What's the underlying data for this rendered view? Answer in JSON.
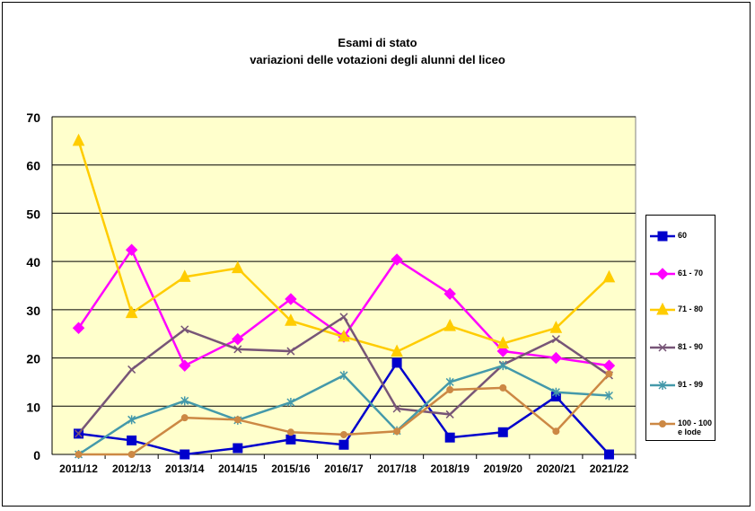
{
  "title": {
    "line1": "Esami di stato",
    "line2": "variazioni delle votazioni degli alunni del liceo"
  },
  "chart_data": {
    "type": "line",
    "title": "Esami di stato variazioni delle votazioni degli alunni del liceo",
    "xlabel": "",
    "ylabel": "",
    "ylim": [
      0,
      70
    ],
    "yticks": [
      0,
      10,
      20,
      30,
      40,
      50,
      60,
      70
    ],
    "grid": true,
    "legend_position": "right",
    "plot_background": "#FFFFCC",
    "categories": [
      "2011/12",
      "2012/13",
      "2013/14",
      "2014/15",
      "2015/16",
      "2016/17",
      "2017/18",
      "2018/19",
      "2019/20",
      "2020/21",
      "2021/22"
    ],
    "series": [
      {
        "name": "60",
        "color": "#0000CC",
        "marker": "square",
        "values": [
          4.3,
          2.9,
          0,
          1.3,
          3.1,
          2.0,
          19.0,
          3.5,
          4.6,
          12.0,
          0
        ]
      },
      {
        "name": "61 - 70",
        "color": "#FF00FF",
        "marker": "diamond",
        "values": [
          26.2,
          42.4,
          18.4,
          23.9,
          32.2,
          24.4,
          40.4,
          33.3,
          21.4,
          20.0,
          18.4
        ]
      },
      {
        "name": "71 - 80",
        "color": "#FFCC00",
        "marker": "triangle",
        "values": [
          65.0,
          29.3,
          36.8,
          38.6,
          27.7,
          24.4,
          21.3,
          26.6,
          23.0,
          26.2,
          36.7
        ]
      },
      {
        "name": "81 - 90",
        "color": "#775577",
        "marker": "x",
        "values": [
          4.3,
          17.6,
          25.9,
          21.8,
          21.4,
          28.5,
          9.5,
          8.3,
          18.6,
          23.9,
          16.4
        ]
      },
      {
        "name": "91 - 99",
        "color": "#4499AA",
        "marker": "star",
        "values": [
          0,
          7.2,
          11.1,
          7.1,
          10.8,
          16.4,
          4.9,
          15.0,
          18.4,
          12.9,
          12.2
        ]
      },
      {
        "name": "100 - 100 e lode",
        "color": "#CC8844",
        "marker": "circle",
        "values": [
          0,
          0,
          7.6,
          7.2,
          4.6,
          4.1,
          4.8,
          13.4,
          13.8,
          4.8,
          16.7
        ]
      }
    ]
  },
  "legend": {
    "items": [
      {
        "label": "60"
      },
      {
        "label": "61 - 70"
      },
      {
        "label": "71 - 80"
      },
      {
        "label": "81 - 90"
      },
      {
        "label": "91 - 99"
      },
      {
        "label": "100 - 100 e lode"
      }
    ]
  }
}
